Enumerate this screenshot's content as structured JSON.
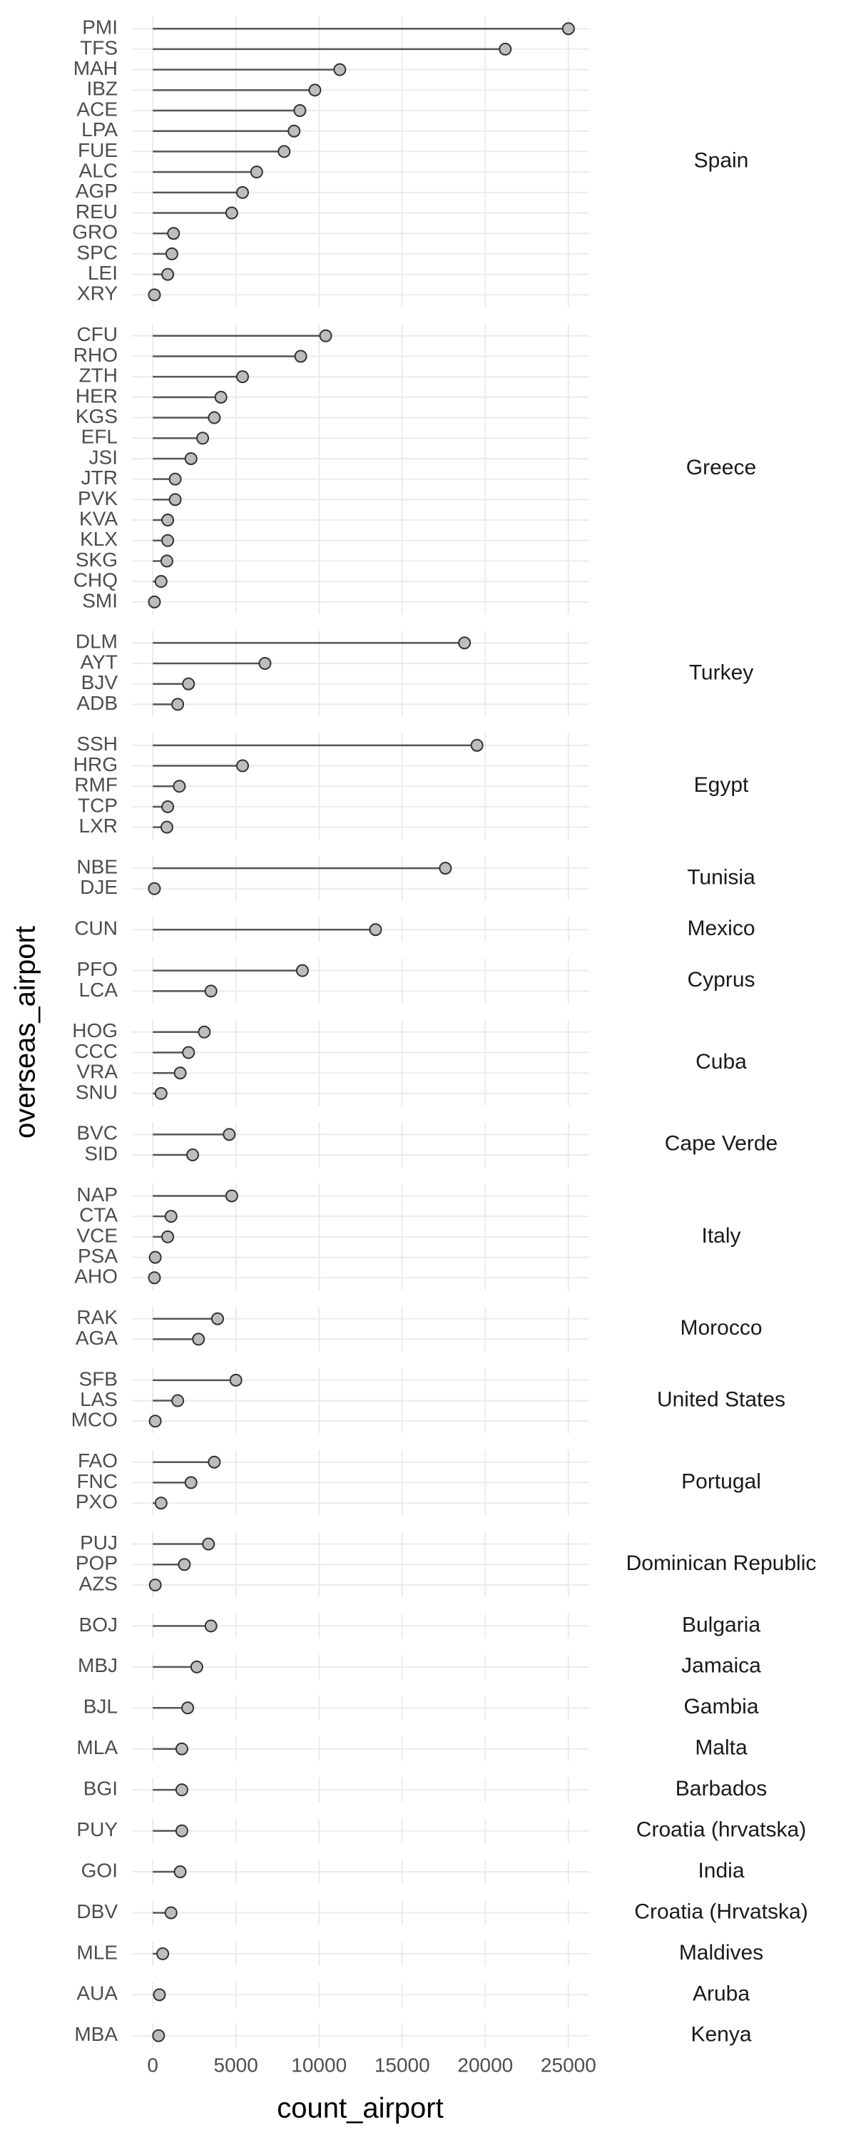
{
  "chart_data": {
    "type": "lollipop",
    "x_label": "count_airport",
    "y_label": "overseas_airport",
    "xlim": [
      -1250,
      26250
    ],
    "xticks": [
      0,
      5000,
      10000,
      15000,
      20000,
      25000
    ],
    "grid": true,
    "stem_color": "#555555",
    "point_color": "#bdbdbd",
    "facets": [
      {
        "name": "Spain",
        "categories": [
          "PMI",
          "TFS",
          "MAH",
          "IBZ",
          "ACE",
          "LPA",
          "FUE",
          "ALC",
          "AGP",
          "REU",
          "GRO",
          "SPC",
          "LEI",
          "XRY"
        ],
        "values": [
          25000,
          21200,
          11250,
          9750,
          8850,
          8500,
          7900,
          6250,
          5400,
          4750,
          1250,
          1150,
          900,
          100
        ]
      },
      {
        "name": "Greece",
        "categories": [
          "CFU",
          "RHO",
          "ZTH",
          "HER",
          "KGS",
          "EFL",
          "JSI",
          "JTR",
          "PVK",
          "KVA",
          "KLX",
          "SKG",
          "CHQ",
          "SMI"
        ],
        "values": [
          10400,
          8900,
          5400,
          4100,
          3700,
          3000,
          2300,
          1350,
          1350,
          900,
          900,
          850,
          500,
          100
        ]
      },
      {
        "name": "Turkey",
        "categories": [
          "DLM",
          "AYT",
          "BJV",
          "ADB"
        ],
        "values": [
          18750,
          6750,
          2150,
          1500
        ]
      },
      {
        "name": "Egypt",
        "categories": [
          "SSH",
          "HRG",
          "RMF",
          "TCP",
          "LXR"
        ],
        "values": [
          19500,
          5400,
          1600,
          900,
          850
        ]
      },
      {
        "name": "Tunisia",
        "categories": [
          "NBE",
          "DJE"
        ],
        "values": [
          17600,
          100
        ]
      },
      {
        "name": "Mexico",
        "categories": [
          "CUN"
        ],
        "values": [
          13400
        ]
      },
      {
        "name": "Cyprus",
        "categories": [
          "PFO",
          "LCA"
        ],
        "values": [
          9000,
          3500
        ]
      },
      {
        "name": "Cuba",
        "categories": [
          "HOG",
          "CCC",
          "VRA",
          "SNU"
        ],
        "values": [
          3100,
          2150,
          1650,
          500
        ]
      },
      {
        "name": "Cape Verde",
        "categories": [
          "BVC",
          "SID"
        ],
        "values": [
          4600,
          2400
        ]
      },
      {
        "name": "Italy",
        "categories": [
          "NAP",
          "CTA",
          "VCE",
          "PSA",
          "AHO"
        ],
        "values": [
          4750,
          1100,
          900,
          150,
          100
        ]
      },
      {
        "name": "Morocco",
        "categories": [
          "RAK",
          "AGA"
        ],
        "values": [
          3900,
          2750
        ]
      },
      {
        "name": "United States",
        "categories": [
          "SFB",
          "LAS",
          "MCO"
        ],
        "values": [
          5000,
          1500,
          150
        ]
      },
      {
        "name": "Portugal",
        "categories": [
          "FAO",
          "FNC",
          "PXO"
        ],
        "values": [
          3700,
          2300,
          500
        ]
      },
      {
        "name": "Dominican Republic",
        "categories": [
          "PUJ",
          "POP",
          "AZS"
        ],
        "values": [
          3350,
          1900,
          150
        ]
      },
      {
        "name": "Bulgaria",
        "categories": [
          "BOJ"
        ],
        "values": [
          3500
        ]
      },
      {
        "name": "Jamaica",
        "categories": [
          "MBJ"
        ],
        "values": [
          2650
        ]
      },
      {
        "name": "Gambia",
        "categories": [
          "BJL"
        ],
        "values": [
          2100
        ]
      },
      {
        "name": "Malta",
        "categories": [
          "MLA"
        ],
        "values": [
          1750
        ]
      },
      {
        "name": "Barbados",
        "categories": [
          "BGI"
        ],
        "values": [
          1750
        ]
      },
      {
        "name": "Croatia (hrvatska)",
        "categories": [
          "PUY"
        ],
        "values": [
          1750
        ]
      },
      {
        "name": "India",
        "categories": [
          "GOI"
        ],
        "values": [
          1650
        ]
      },
      {
        "name": "Croatia (Hrvatska)",
        "categories": [
          "DBV"
        ],
        "values": [
          1100
        ]
      },
      {
        "name": "Maldives",
        "categories": [
          "MLE"
        ],
        "values": [
          600
        ]
      },
      {
        "name": "Aruba",
        "categories": [
          "AUA"
        ],
        "values": [
          400
        ]
      },
      {
        "name": "Kenya",
        "categories": [
          "MBA"
        ],
        "values": [
          350
        ]
      }
    ]
  }
}
